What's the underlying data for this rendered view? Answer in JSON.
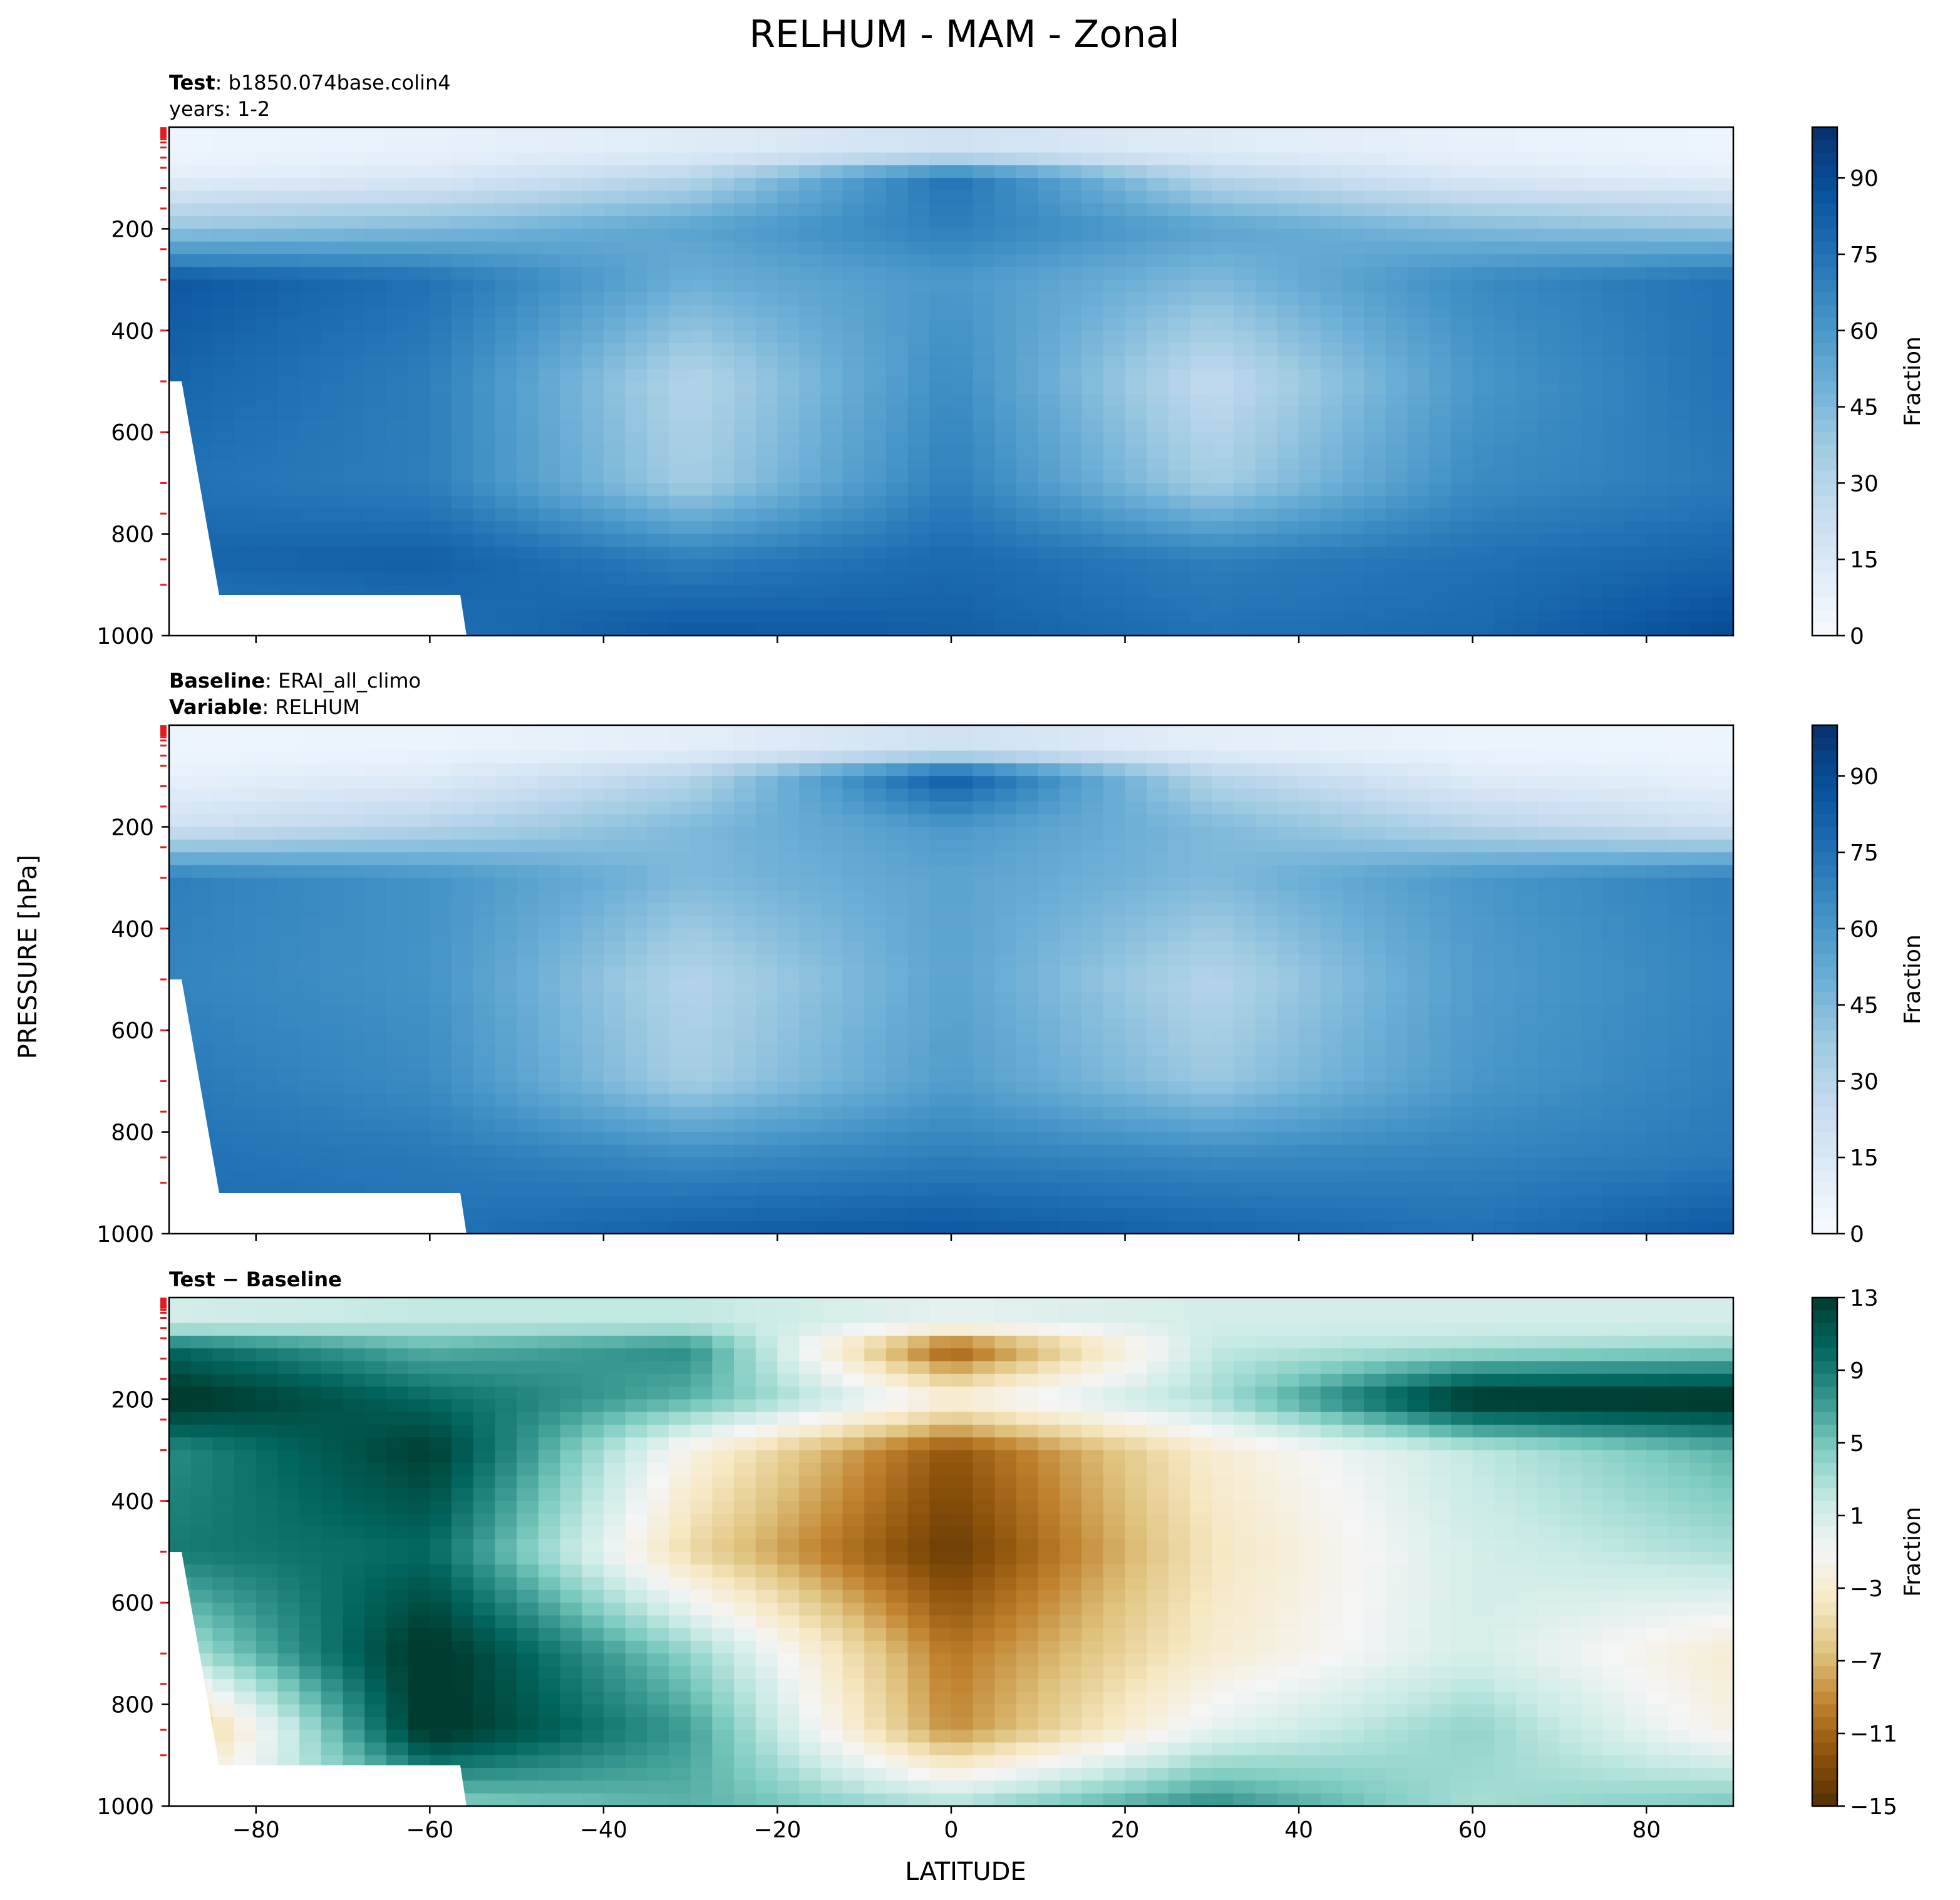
{
  "figure": {
    "title": "RELHUM - MAM - Zonal",
    "ylabel": "PRESSURE [hPa]",
    "xlabel": "LATITUDE"
  },
  "panels": [
    {
      "id": "test",
      "lines": [
        [
          {
            "text": "Test",
            "bold": true
          },
          {
            "text": ": b1850.074base.colin4",
            "bold": false
          }
        ],
        [
          {
            "text": "years: 1-2",
            "bold": false
          }
        ]
      ],
      "colorbar": {
        "label": "Fraction",
        "ticks": [
          "0",
          "15",
          "30",
          "45",
          "60",
          "75",
          "90"
        ],
        "scheme": "blues",
        "min": 0,
        "max": 100,
        "tick_values": [
          0,
          15,
          30,
          45,
          60,
          75,
          90
        ]
      }
    },
    {
      "id": "baseline",
      "lines": [
        [
          {
            "text": "Baseline",
            "bold": true
          },
          {
            "text": ": ERAI_all_climo",
            "bold": false
          }
        ],
        [
          {
            "text": "Variable",
            "bold": true
          },
          {
            "text": ": RELHUM",
            "bold": false
          }
        ]
      ],
      "colorbar": {
        "label": "Fraction",
        "ticks": [
          "0",
          "15",
          "30",
          "45",
          "60",
          "75",
          "90"
        ],
        "scheme": "blues",
        "min": 0,
        "max": 100,
        "tick_values": [
          0,
          15,
          30,
          45,
          60,
          75,
          90
        ]
      }
    },
    {
      "id": "diff",
      "lines": [
        [
          {
            "text": "Test − Baseline",
            "bold": true
          }
        ]
      ],
      "colorbar": {
        "label": "Fraction",
        "ticks": [
          "13",
          "9",
          "5",
          "1",
          "−3",
          "−7",
          "−11",
          "−15"
        ],
        "scheme": "brbg",
        "min": -15,
        "max": 13,
        "tick_values": [
          13,
          9,
          5,
          1,
          -3,
          -7,
          -11,
          -15
        ]
      }
    }
  ],
  "axes": {
    "y_ticks": [
      "200",
      "400",
      "600",
      "800",
      "1000"
    ],
    "x_ticks": [
      "−80",
      "−60",
      "−40",
      "−20",
      "0",
      "20",
      "40",
      "60",
      "80"
    ]
  },
  "chart_data": [
    {
      "type": "heatmap",
      "title": "Test : b1850.074base.colin4 (years: 1-2)",
      "xlabel": "LATITUDE",
      "ylabel": "PRESSURE [hPa]",
      "xlim": [
        -90,
        90
      ],
      "ylim": [
        1000,
        0
      ],
      "y_reversed": true,
      "units": "Fraction",
      "color_range": [
        0,
        100
      ],
      "x": [
        -90,
        -60,
        -30,
        0,
        30,
        60,
        90
      ],
      "y": [
        50,
        100,
        200,
        300,
        500,
        700,
        850,
        1000
      ],
      "z": [
        [
          5,
          8,
          12,
          20,
          12,
          8,
          5
        ],
        [
          10,
          15,
          30,
          75,
          30,
          15,
          10
        ],
        [
          40,
          45,
          55,
          70,
          55,
          45,
          40
        ],
        [
          85,
          75,
          50,
          60,
          45,
          65,
          75
        ],
        [
          80,
          70,
          30,
          65,
          25,
          60,
          75
        ],
        [
          75,
          70,
          35,
          70,
          35,
          65,
          72
        ],
        [
          80,
          82,
          70,
          78,
          70,
          75,
          80
        ],
        [
          70,
          75,
          85,
          82,
          75,
          78,
          90
        ]
      ]
    },
    {
      "type": "heatmap",
      "title": "Baseline : ERAI_all_climo, Variable : RELHUM",
      "xlabel": "LATITUDE",
      "ylabel": "PRESSURE [hPa]",
      "xlim": [
        -90,
        90
      ],
      "ylim": [
        1000,
        0
      ],
      "y_reversed": true,
      "units": "Fraction",
      "color_range": [
        0,
        100
      ],
      "x": [
        -90,
        -60,
        -30,
        0,
        30,
        60,
        90
      ],
      "y": [
        50,
        100,
        200,
        300,
        500,
        700,
        850,
        1000
      ],
      "z": [
        [
          5,
          6,
          10,
          20,
          10,
          6,
          5
        ],
        [
          8,
          12,
          30,
          85,
          30,
          12,
          8
        ],
        [
          20,
          30,
          45,
          60,
          45,
          30,
          20
        ],
        [
          70,
          62,
          45,
          55,
          45,
          60,
          70
        ],
        [
          68,
          62,
          30,
          55,
          30,
          58,
          68
        ],
        [
          72,
          65,
          35,
          58,
          38,
          60,
          70
        ],
        [
          75,
          72,
          65,
          70,
          66,
          68,
          72
        ],
        [
          78,
          75,
          82,
          85,
          80,
          75,
          85
        ]
      ]
    },
    {
      "type": "heatmap",
      "title": "Test − Baseline",
      "xlabel": "LATITUDE",
      "ylabel": "PRESSURE [hPa]",
      "xlim": [
        -90,
        90
      ],
      "ylim": [
        1000,
        0
      ],
      "y_reversed": true,
      "units": "Fraction",
      "color_range": [
        -15,
        13
      ],
      "x": [
        -90,
        -60,
        -30,
        0,
        30,
        60,
        90
      ],
      "y": [
        50,
        100,
        200,
        300,
        500,
        700,
        850,
        1000
      ],
      "z": [
        [
          1,
          2,
          2,
          0,
          1,
          1,
          1
        ],
        [
          10,
          6,
          8,
          -12,
          2,
          3,
          4
        ],
        [
          14,
          10,
          6,
          -2,
          3,
          14,
          14
        ],
        [
          8,
          13,
          -2,
          -12,
          -3,
          2,
          6
        ],
        [
          9,
          10,
          -5,
          -14,
          -4,
          1,
          3
        ],
        [
          2,
          14,
          4,
          -10,
          -3,
          1,
          -3
        ],
        [
          -9,
          14,
          7,
          -9,
          0,
          4,
          -2
        ],
        [
          0,
          4,
          6,
          3,
          8,
          3,
          5
        ]
      ]
    }
  ]
}
